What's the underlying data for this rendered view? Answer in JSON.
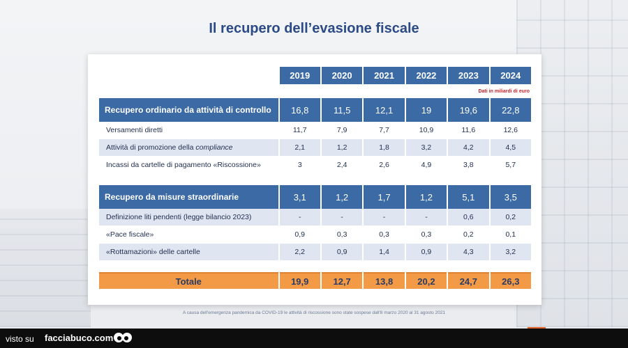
{
  "title": "Il recupero dell’evasione fiscale",
  "years": [
    "2019",
    "2020",
    "2021",
    "2022",
    "2023",
    "2024"
  ],
  "unit_note": "Dati in miliardi di euro",
  "sections": [
    {
      "label": "Recupero ordinario da attività di controllo",
      "values": [
        "16,8",
        "11,5",
        "12,1",
        "19",
        "19,6",
        "22,8"
      ],
      "rows": [
        {
          "label": "Versamenti diretti",
          "values": [
            "11,7",
            "7,9",
            "7,7",
            "10,9",
            "11,6",
            "12,6"
          ]
        },
        {
          "label_prefix": "Attività di promozione della ",
          "label_em": "compliance",
          "values": [
            "2,1",
            "1,2",
            "1,8",
            "3,2",
            "4,2",
            "4,5"
          ]
        },
        {
          "label": "Incassi da cartelle di pagamento «Riscossione»",
          "values": [
            "3",
            "2,4",
            "2,6",
            "4,9",
            "3,8",
            "5,7"
          ]
        }
      ]
    },
    {
      "label": "Recupero da misure straordinarie",
      "values": [
        "3,1",
        "1,2",
        "1,7",
        "1,2",
        "5,1",
        "3,5"
      ],
      "rows": [
        {
          "label": "Definizione liti pendenti (legge bilancio 2023)",
          "values": [
            "-",
            "-",
            "-",
            "-",
            "0,6",
            "0,2"
          ]
        },
        {
          "label": "«Pace fiscale»",
          "values": [
            "0,9",
            "0,3",
            "0,3",
            "0,3",
            "0,2",
            "0,1"
          ]
        },
        {
          "label": "«Rottamazioni» delle cartelle",
          "values": [
            "2,2",
            "0,9",
            "1,4",
            "0,9",
            "4,3",
            "3,2"
          ]
        }
      ]
    }
  ],
  "total": {
    "label": "Totale",
    "values": [
      "19,9",
      "12,7",
      "13,8",
      "20,2",
      "24,7",
      "26,3"
    ]
  },
  "footnote": "A causa dell'emergenza pandemica da COVID-19 le attività di riscossione sono state sospese dall'8 marzo 2020 al 31 agosto 2021",
  "watermark": {
    "visto_su": "visto su",
    "site": "facciabuco.com"
  },
  "colors": {
    "header_blue": "#3b6aa5",
    "row_shade": "#dfe6f1",
    "total_orange": "#f39a47",
    "title_blue": "#2b4a86",
    "unit_red": "#c0262b"
  }
}
